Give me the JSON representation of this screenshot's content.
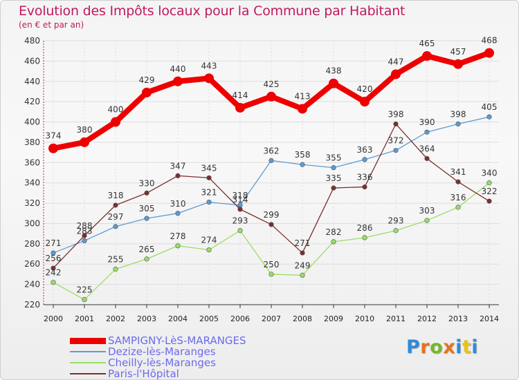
{
  "chart_data": {
    "type": "line",
    "title": "Evolution des Impôts locaux pour la Commune par Habitant",
    "subtitle": "(en € et par an)",
    "xlabel": "",
    "ylabel": "",
    "x": [
      "2000",
      "2001",
      "2002",
      "2003",
      "2004",
      "2005",
      "2006",
      "2007",
      "2008",
      "2009",
      "2010",
      "2011",
      "2012",
      "2013",
      "2014"
    ],
    "ylim": [
      220,
      480
    ],
    "yticks": [
      220,
      240,
      260,
      280,
      300,
      320,
      340,
      360,
      380,
      400,
      420,
      440,
      460,
      480
    ],
    "grid": true,
    "legend_position": "bottom-left",
    "series": [
      {
        "name": "SAMPIGNY-LèS-MARANGES",
        "color": "#ee0000",
        "emphasis": true,
        "values": [
          374,
          380,
          400,
          429,
          440,
          443,
          414,
          425,
          413,
          438,
          420,
          447,
          465,
          457,
          468
        ]
      },
      {
        "name": "Dezize-lès-Maranges",
        "color": "#5b9bd5",
        "values": [
          271,
          283,
          297,
          305,
          310,
          321,
          318,
          362,
          358,
          355,
          363,
          372,
          390,
          398,
          405
        ]
      },
      {
        "name": "Cheilly-lès-Maranges",
        "color": "#99dd66",
        "values": [
          242,
          225,
          255,
          265,
          278,
          274,
          293,
          250,
          249,
          282,
          286,
          293,
          303,
          316,
          340
        ]
      },
      {
        "name": "Paris-l'Hôpital",
        "color": "#7b2f2f",
        "values": [
          256,
          288,
          318,
          330,
          347,
          345,
          314,
          299,
          271,
          335,
          336,
          398,
          364,
          341,
          322
        ]
      }
    ]
  },
  "logo": {
    "letters": [
      "P",
      "r",
      "o",
      "x",
      "i",
      "t",
      "i"
    ],
    "colors": [
      "#2e8bd8",
      "#e8731a",
      "#77b82a",
      "#e8731a",
      "#2e8bd8",
      "#e8c31a",
      "#2e8bd8"
    ]
  }
}
